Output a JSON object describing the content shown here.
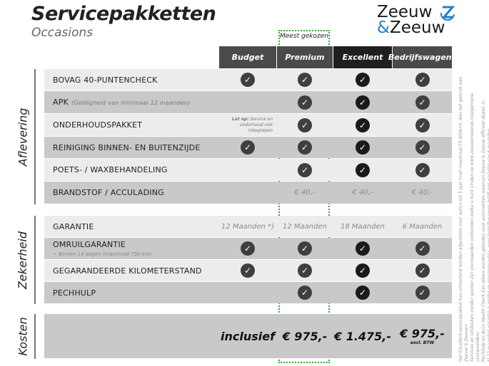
{
  "header": {
    "title": "Servicepakketten",
    "subtitle": "Occasions",
    "logo_text": "Zeeuw & Zeeuw",
    "logo_line1": "Zeeuw",
    "logo_amp": "&",
    "logo_line2": "Zeeuw",
    "badge": "Meest gekozen"
  },
  "colors": {
    "accent_green": "#3aa03a",
    "header_dark": "#4a4a4a",
    "header_excellent": "#1f1f1f",
    "logo_blue": "#1f7fd0"
  },
  "columns": [
    "Budget",
    "Premium",
    "Excellent",
    "Bedrijfswagens"
  ],
  "sections": [
    {
      "label": "Aflevering",
      "rows": [
        {
          "label": "BOVAG 40-PUNTENCHECK",
          "cells": [
            "check",
            "check",
            "check",
            "check"
          ]
        },
        {
          "label": "APK",
          "note": "(Geldigheid van minimaal 12 maanden)",
          "cells": [
            "",
            "check",
            "check",
            "check"
          ]
        },
        {
          "label": "ONDERHOUDSPAKKET",
          "cells": [
            "Let op: Service en onderhoud niet inbegrepen",
            "check",
            "check",
            "check"
          ]
        },
        {
          "label": "REINIGING BINNEN- EN BUITENZIJDE",
          "cells": [
            "check",
            "check",
            "check",
            "check"
          ]
        },
        {
          "label": "POETS- / WAXBEHANDELING",
          "cells": [
            "",
            "check",
            "check",
            "check"
          ]
        },
        {
          "label": "BRANDSTOF / ACCULADING",
          "cells": [
            "",
            "€ 40,-",
            "€ 40,-",
            "€ 40,-"
          ]
        }
      ]
    },
    {
      "label": "Zekerheid",
      "rows": [
        {
          "label": "GARANTIE",
          "cells": [
            "12 Maanden *)",
            "12 Maanden",
            "18 Maanden",
            "6 Maanden"
          ]
        },
        {
          "label": "OMRUILGARANTIE",
          "sub": "✓  Binnen 14 dagen (maximaal 750 km)",
          "cells": [
            "check",
            "check",
            "check",
            "check"
          ]
        },
        {
          "label": "GEGARANDEERDE KILOMETERSTAND",
          "cells": [
            "check",
            "check",
            "check",
            "check"
          ]
        },
        {
          "label": "PECHHULP",
          "cells": [
            "",
            "check",
            "check",
            "check"
          ]
        }
      ]
    },
    {
      "label": "Kosten",
      "prices": [
        "inclusief",
        "€ 975,-",
        "€ 1.475,-",
        "€ 975,-"
      ],
      "price_note": "excl. BTW"
    }
  ],
  "footnote": [
    "Het Excellent-servicepakket kan uitsluitend worden afgesloten voor auto's tot 5 jaar (met maximaal 75.000km). Aan het gebruik van Zeeuw & Zeeuw+",
    "Services en Uitdeuken zonder spuiten zijn voorwaarden verbonden welke u kunt vinden op www.zeeuwenzeeuw.nl/algemene-voorwaarden/.",
    "Pechhulp en Accu Health Check kan alleen worden geboden voor automerken waarvan Zeeuw & Zeeuw officieel dealer is.",
    "*) 12 maanden garantie is geldig op personenauto's, voor bedrijfswagens geldt een garantie van 6 maanden."
  ]
}
